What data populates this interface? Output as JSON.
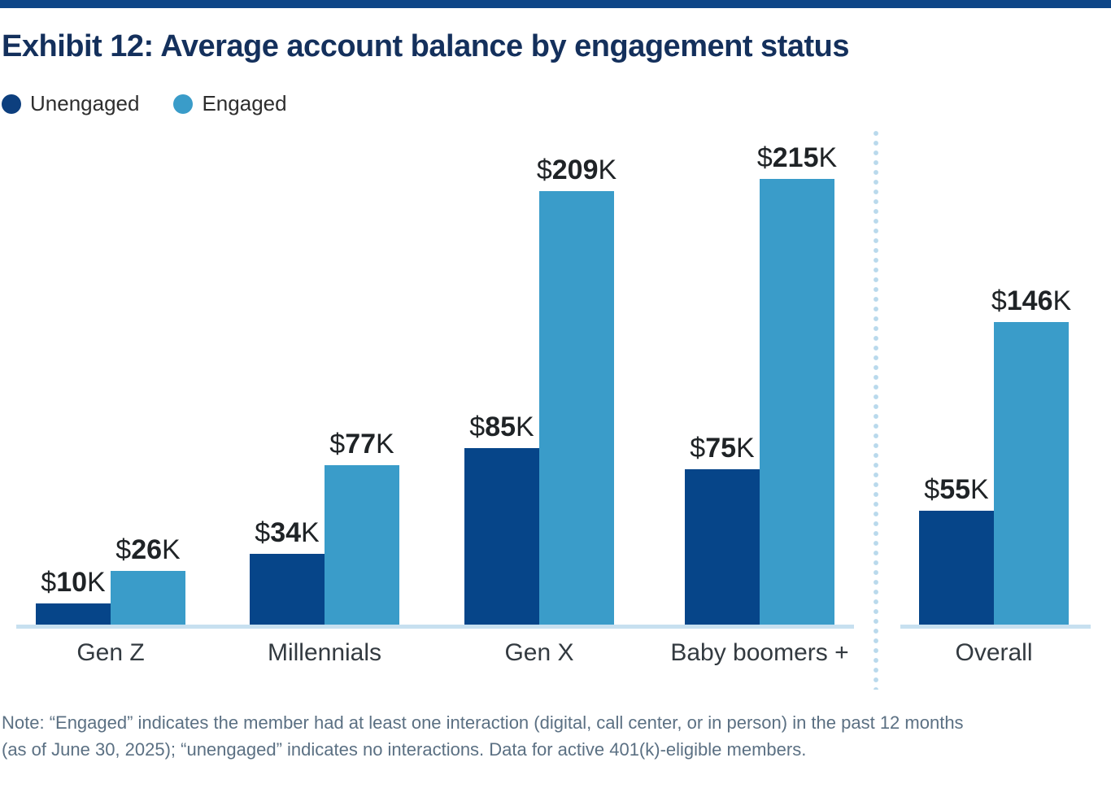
{
  "page": {
    "title": "Exhibit 12: Average account balance by engagement status",
    "note_line1": "Note: “Engaged” indicates the member had at least one interaction (digital, call center, or in person) in the past 12 months",
    "note_line2": "(as of June 30, 2025); “unengaged” indicates no interactions. Data for active 401(k)-eligible members."
  },
  "legend": {
    "items": [
      {
        "label": "Unengaged",
        "color": "#0d3f7e"
      },
      {
        "label": "Engaged",
        "color": "#3a9cc9"
      }
    ]
  },
  "colors": {
    "top_bar": "#0e4687",
    "title": "#14305c",
    "unengaged_bar": "#064589",
    "engaged_bar": "#3a9cc9",
    "axis_line": "#c7e0f0",
    "separator_dots": "#b9d9ec",
    "value_label": "#1f2326",
    "category_label": "#333a40",
    "note_text": "#5b7083"
  },
  "chart_data": {
    "type": "bar",
    "title": "Average account balance by engagement status",
    "categories": [
      "Gen Z",
      "Millennials",
      "Gen X",
      "Baby boomers +",
      "Overall"
    ],
    "series": [
      {
        "name": "Unengaged",
        "color": "#064589",
        "values": [
          10,
          34,
          85,
          75,
          55
        ]
      },
      {
        "name": "Engaged",
        "color": "#3a9cc9",
        "values": [
          26,
          77,
          209,
          215,
          146
        ]
      }
    ],
    "value_prefix": "$",
    "value_suffix": "K",
    "data_labels": [
      "$10K",
      "$26K",
      "$34K",
      "$77K",
      "$85K",
      "$209K",
      "$75K",
      "$215K",
      "$55K",
      "$146K"
    ],
    "xlabel": "",
    "ylabel": "",
    "ylim": [
      0,
      225
    ],
    "grid": false,
    "axis_ticks_shown": false,
    "legend_position": "top-left",
    "separator_before_category": "Overall"
  }
}
